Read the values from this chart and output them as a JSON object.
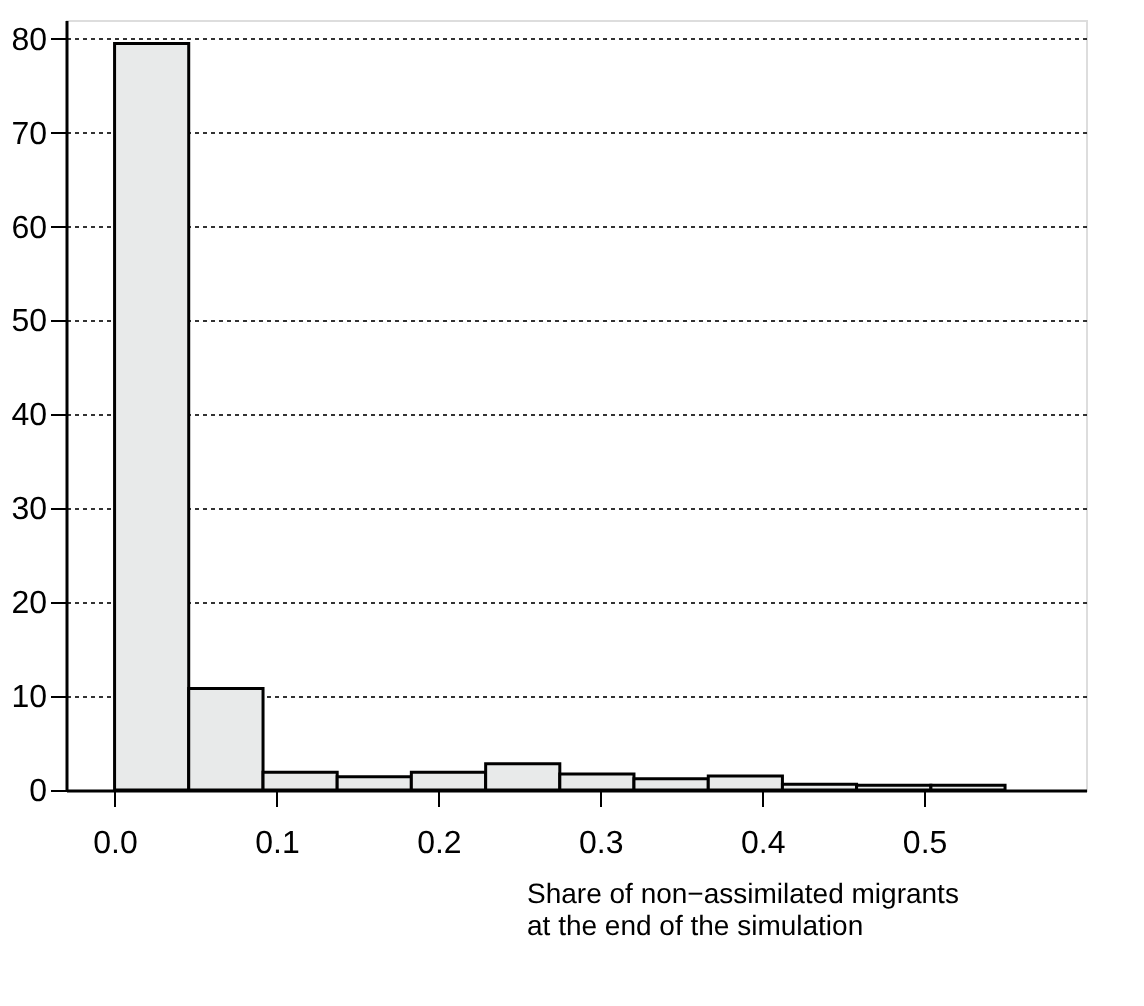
{
  "chart_data": {
    "type": "histogram",
    "xlabel": "Share of non−assimilated migrants at the end of the simulation",
    "bins": [
      0,
      0.0458,
      0.0917,
      0.1375,
      0.1833,
      0.2292,
      0.275,
      0.3208,
      0.3667,
      0.4125,
      0.4583,
      0.5042,
      0.55
    ],
    "values": [
      79.5,
      10.8,
      1.9,
      1.4,
      1.9,
      2.8,
      1.7,
      1.2,
      1.5,
      0.6,
      0.5,
      0.5
    ],
    "color": "#e8eaea",
    "xlim": [
      -0.03,
      0.6
    ],
    "xticks": [
      {
        "value": 0,
        "label": "0.0"
      },
      0.1,
      0.2,
      0.3,
      0.4,
      0.5
    ],
    "ylim": [
      0,
      82
    ],
    "yticks": [
      0,
      10,
      20,
      30,
      40,
      50,
      60,
      70,
      80
    ],
    "grid": "y"
  }
}
